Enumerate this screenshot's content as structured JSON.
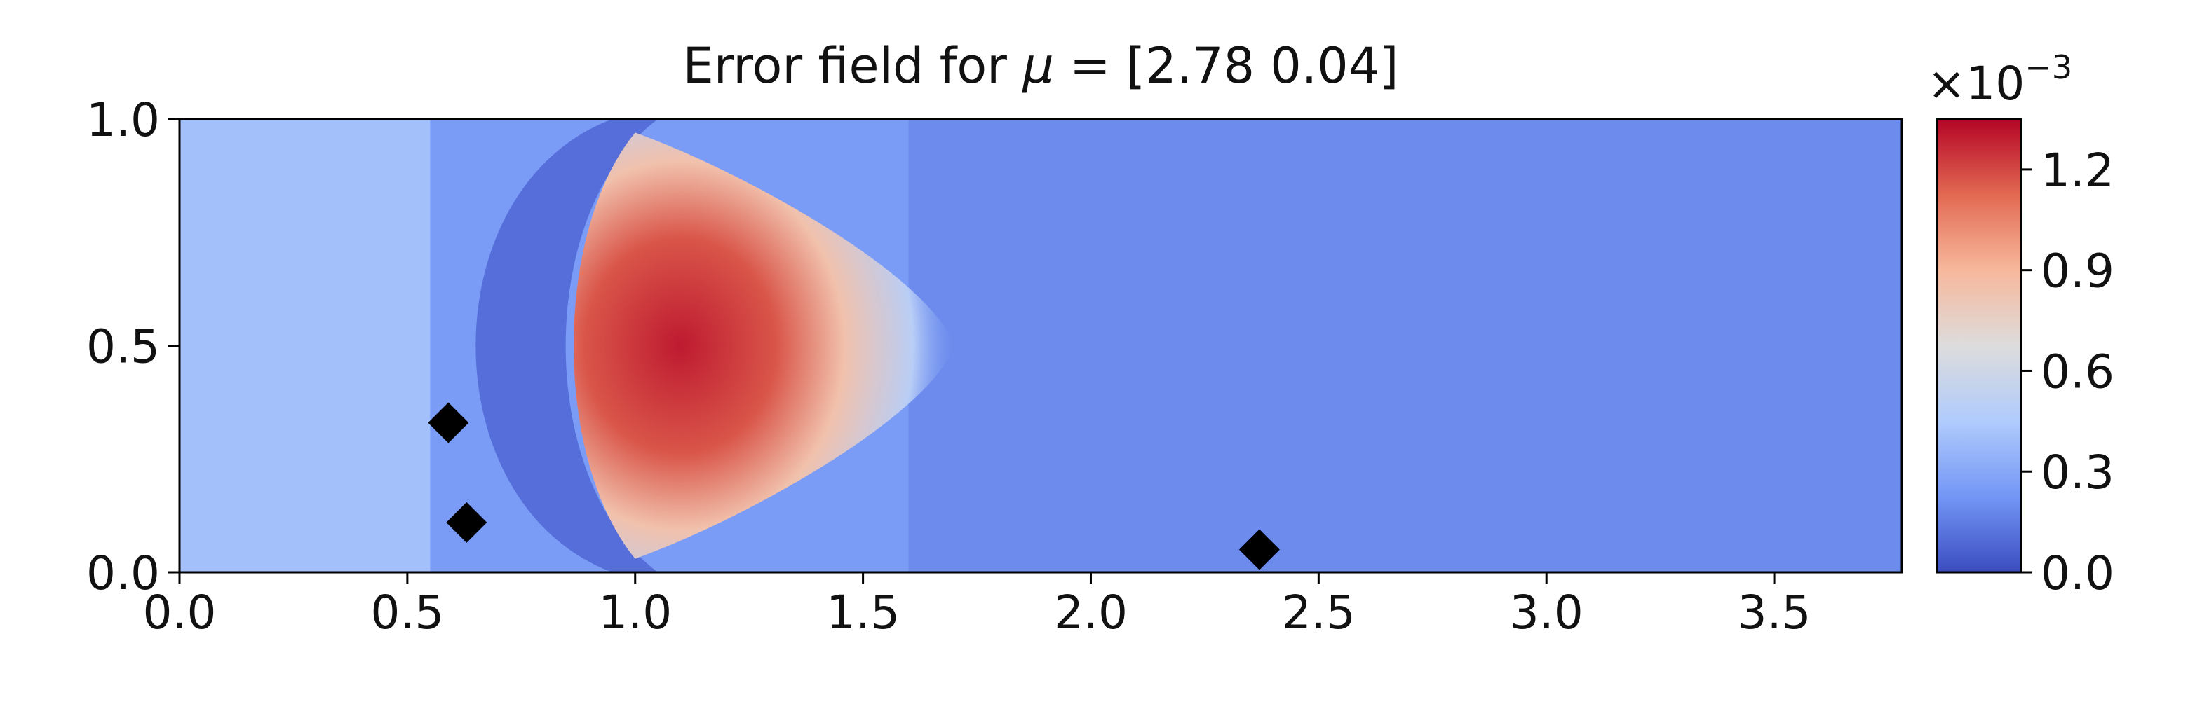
{
  "chart_data": {
    "type": "heatmap",
    "title_prefix": "Error field for ",
    "title_symbol": "μ",
    "title_suffix": " = [2.78 0.04]",
    "xlabel": "",
    "ylabel": "",
    "xlim": [
      0.0,
      3.78
    ],
    "ylim": [
      0.0,
      1.0
    ],
    "x_ticks": [
      "0.0",
      "0.5",
      "1.0",
      "1.5",
      "2.0",
      "2.5",
      "3.0",
      "3.5"
    ],
    "y_ticks": [
      "0.0",
      "0.5",
      "1.0"
    ],
    "colormap": "coolwarm",
    "colormap_colors": [
      "#3b4cc0",
      "#7396f5",
      "#b0cbfc",
      "#dddcdc",
      "#f7b89c",
      "#e26952",
      "#b40426"
    ],
    "colorbar": {
      "range": [
        0.0,
        1.35
      ],
      "ticks": [
        "0.0",
        "0.3",
        "0.6",
        "0.9",
        "1.2"
      ],
      "multiplier_base": "×10",
      "multiplier_exponent": "−3"
    },
    "field_features": [
      {
        "name": "background",
        "value": 0.25
      },
      {
        "name": "left-inflow-region",
        "x": [
          0.0,
          0.55
        ],
        "value": 0.42
      },
      {
        "name": "high-error-lobe",
        "x": [
          0.9,
          1.6
        ],
        "y": [
          0.2,
          0.85
        ],
        "peak_x": 1.05,
        "peak_y": 0.5,
        "peak_value": 1.3
      },
      {
        "name": "low-error-arc",
        "x": [
          0.6,
          0.95
        ],
        "value": 0.08
      },
      {
        "name": "downstream-wake",
        "x": [
          1.6,
          3.78
        ],
        "value": 0.15
      }
    ],
    "series": [
      {
        "marker": "diamond",
        "color": "#000000",
        "points": [
          {
            "x": 0.59,
            "y": 0.33
          },
          {
            "x": 0.63,
            "y": 0.11
          },
          {
            "x": 2.37,
            "y": 0.05
          }
        ]
      }
    ]
  }
}
